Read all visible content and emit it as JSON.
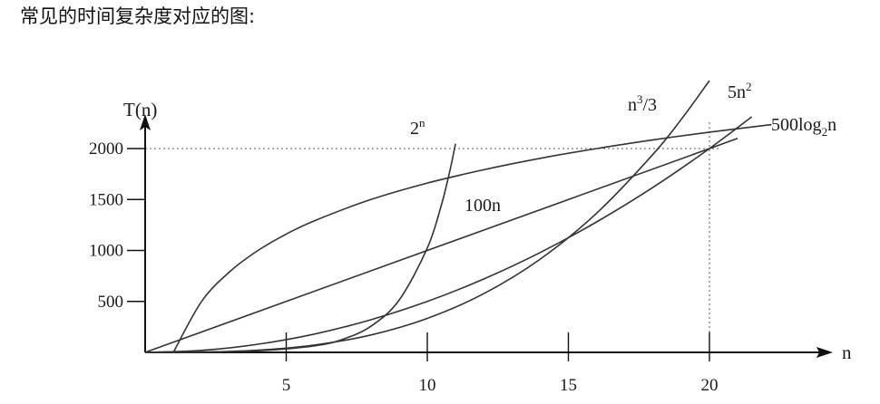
{
  "heading": "常见的时间复杂度对应的图:",
  "chart_data": {
    "type": "line",
    "title": "",
    "xlabel": "n",
    "ylabel": "T(n)",
    "xlim": [
      0,
      25
    ],
    "ylim": [
      0,
      2300
    ],
    "x_ticks": [
      5,
      10,
      15,
      20
    ],
    "x_tick_labels": [
      "5",
      "10",
      "15",
      "20"
    ],
    "y_ticks": [
      500,
      1000,
      1500,
      2000
    ],
    "y_tick_labels": [
      "500",
      "1000",
      "1500",
      "2000"
    ],
    "grid": false,
    "reference_lines": [
      {
        "orientation": "horizontal",
        "value": 2000
      },
      {
        "orientation": "vertical",
        "value": 20
      }
    ],
    "series": [
      {
        "name": "2ⁿ",
        "label_base": "2",
        "label_sup": "n",
        "x": [
          0,
          2,
          4,
          6,
          7,
          8,
          9,
          10,
          10.5,
          10.8,
          11
        ],
        "y": [
          1,
          4,
          16,
          64,
          128,
          256,
          512,
          1024,
          1448,
          1783,
          2048
        ]
      },
      {
        "name": "n³/3",
        "label_base": "n",
        "label_sup": "3",
        "label_tail": "/3",
        "x": [
          0,
          2,
          4,
          6,
          8,
          10,
          12,
          14,
          16,
          18,
          19,
          20
        ],
        "y": [
          0,
          3,
          21,
          72,
          171,
          333,
          576,
          915,
          1365,
          1944,
          2286,
          2667
        ]
      },
      {
        "name": "5n²",
        "label_base": "5n",
        "label_sup": "2",
        "x": [
          0,
          2,
          4,
          6,
          8,
          10,
          12,
          14,
          16,
          18,
          20,
          21.5
        ],
        "y": [
          0,
          20,
          80,
          180,
          320,
          500,
          720,
          980,
          1280,
          1620,
          2000,
          2311
        ]
      },
      {
        "name": "100n",
        "label_base": "100n",
        "x": [
          0,
          21
        ],
        "y": [
          0,
          2100
        ]
      },
      {
        "name": "500log₂n",
        "label_base": "500log",
        "label_sub": "2",
        "label_tail": "n",
        "x": [
          1,
          2,
          3,
          4,
          5,
          6,
          8,
          10,
          12,
          14,
          16,
          18,
          20,
          22.2
        ],
        "y": [
          0,
          500,
          792,
          1000,
          1161,
          1292,
          1500,
          1661,
          1792,
          1904,
          2000,
          2085,
          2161,
          2235
        ]
      }
    ]
  }
}
